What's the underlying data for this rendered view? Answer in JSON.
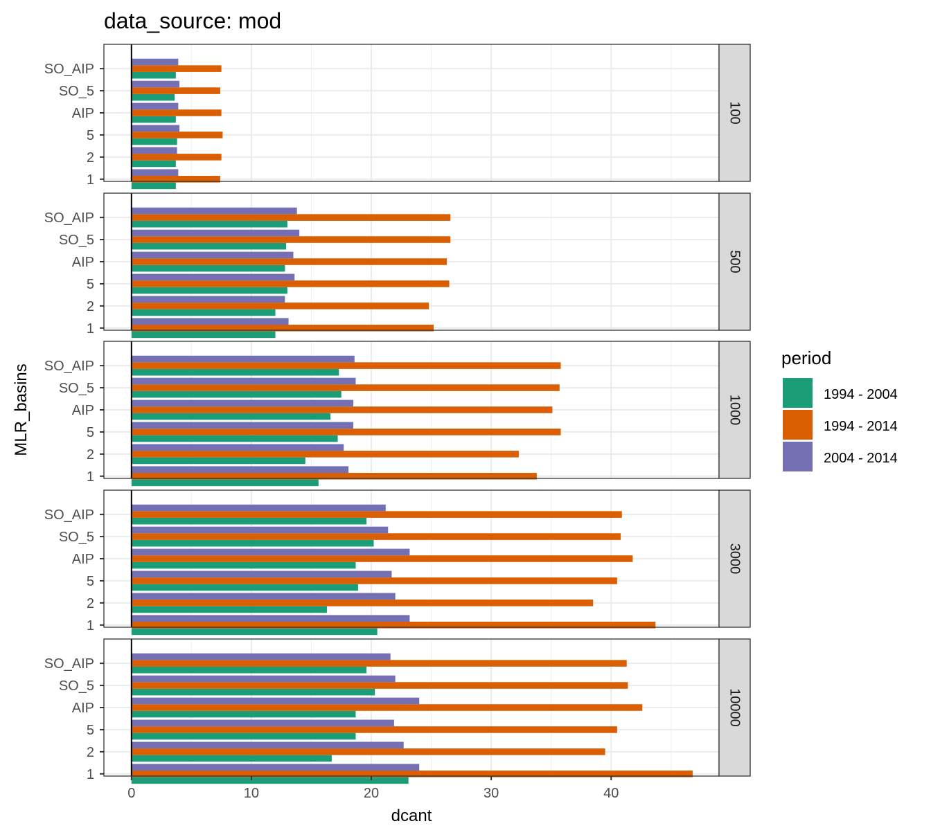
{
  "chart_data": {
    "type": "bar",
    "orientation": "horizontal",
    "title": "data_source: mod",
    "xlabel": "dcant",
    "ylabel": "MLR_basins",
    "xlim": [
      -2.3,
      49
    ],
    "x_ticks": [
      0,
      10,
      20,
      30,
      40
    ],
    "categories": [
      "SO_AIP",
      "SO_5",
      "AIP",
      "5",
      "2",
      "1"
    ],
    "grid": true,
    "legend": {
      "title": "period",
      "position": "right",
      "entries": [
        {
          "name": "1994 - 2004",
          "color": "#1b9e77"
        },
        {
          "name": "1994 - 2014",
          "color": "#d95f02"
        },
        {
          "name": "2004 - 2014",
          "color": "#7570b3"
        }
      ]
    },
    "facets": [
      {
        "label": "100",
        "series": [
          {
            "name": "1994 - 2004",
            "values": [
              3.7,
              3.6,
              3.7,
              3.8,
              3.7,
              3.7
            ]
          },
          {
            "name": "1994 - 2014",
            "values": [
              7.5,
              7.4,
              7.5,
              7.6,
              7.5,
              7.4
            ]
          },
          {
            "name": "2004 - 2014",
            "values": [
              3.9,
              4.0,
              3.9,
              4.0,
              3.8,
              3.9
            ]
          }
        ]
      },
      {
        "label": "500",
        "series": [
          {
            "name": "1994 - 2004",
            "values": [
              13.0,
              12.9,
              12.8,
              13.0,
              12.0,
              12.0
            ]
          },
          {
            "name": "1994 - 2014",
            "values": [
              26.6,
              26.6,
              26.3,
              26.5,
              24.8,
              25.2
            ]
          },
          {
            "name": "2004 - 2014",
            "values": [
              13.8,
              14.0,
              13.5,
              13.6,
              12.8,
              13.1
            ]
          }
        ]
      },
      {
        "label": "1000",
        "series": [
          {
            "name": "1994 - 2004",
            "values": [
              17.3,
              17.5,
              16.6,
              17.2,
              14.5,
              15.6
            ]
          },
          {
            "name": "1994 - 2014",
            "values": [
              35.8,
              35.7,
              35.1,
              35.8,
              32.3,
              33.8
            ]
          },
          {
            "name": "2004 - 2014",
            "values": [
              18.6,
              18.7,
              18.5,
              18.5,
              17.7,
              18.1
            ]
          }
        ]
      },
      {
        "label": "3000",
        "series": [
          {
            "name": "1994 - 2004",
            "values": [
              19.6,
              20.2,
              18.7,
              18.9,
              16.3,
              20.5
            ]
          },
          {
            "name": "1994 - 2014",
            "values": [
              40.9,
              40.8,
              41.8,
              40.5,
              38.5,
              43.7
            ]
          },
          {
            "name": "2004 - 2014",
            "values": [
              21.2,
              21.4,
              23.2,
              21.7,
              22.0,
              23.2
            ]
          }
        ]
      },
      {
        "label": "10000",
        "series": [
          {
            "name": "1994 - 2004",
            "values": [
              19.6,
              20.3,
              18.7,
              18.7,
              16.7,
              23.1
            ]
          },
          {
            "name": "1994 - 2014",
            "values": [
              41.3,
              41.4,
              42.6,
              40.5,
              39.5,
              46.8
            ]
          },
          {
            "name": "2004 - 2014",
            "values": [
              21.6,
              22.0,
              24.0,
              21.9,
              22.7,
              24.0
            ]
          }
        ]
      }
    ]
  }
}
